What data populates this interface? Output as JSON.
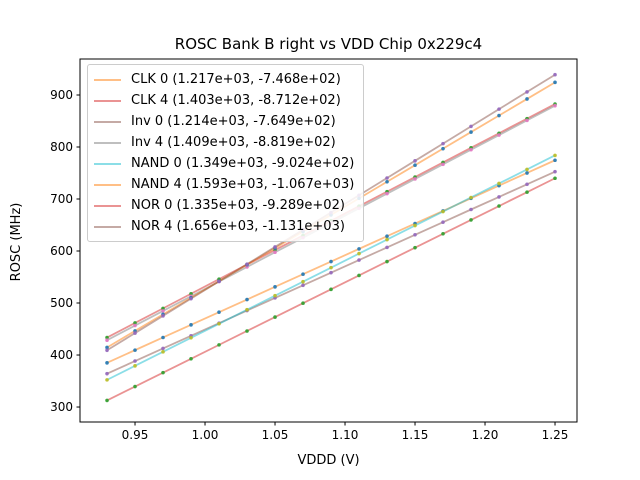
{
  "figure": {
    "background": "#ffffff",
    "axis_color": "#000000",
    "legend_border_color": "#cccccc",
    "line_alpha": 0.5,
    "marker_alpha": 0.9
  },
  "chart_data": {
    "type": "scatter",
    "title": "ROSC Bank B right vs VDD Chip 0x229c4",
    "xlabel": "VDDD (V)",
    "ylabel": "ROSC (MHz)",
    "xlim": [
      0.9107,
      1.2657
    ],
    "ylim": [
      271.2,
      969.2
    ],
    "grid": false,
    "legend_position": "upper left",
    "x_ticks": [
      {
        "value": 0.95,
        "label": "0.95"
      },
      {
        "value": 1.0,
        "label": "1.00"
      },
      {
        "value": 1.05,
        "label": "1.05"
      },
      {
        "value": 1.1,
        "label": "1.10"
      },
      {
        "value": 1.15,
        "label": "1.15"
      },
      {
        "value": 1.2,
        "label": "1.20"
      },
      {
        "value": 1.25,
        "label": "1.25"
      }
    ],
    "y_ticks": [
      {
        "value": 300,
        "label": "300"
      },
      {
        "value": 400,
        "label": "400"
      },
      {
        "value": 500,
        "label": "500"
      },
      {
        "value": 600,
        "label": "600"
      },
      {
        "value": 700,
        "label": "700"
      },
      {
        "value": 800,
        "label": "800"
      },
      {
        "value": 900,
        "label": "900"
      }
    ],
    "x": [
      0.93,
      0.95,
      0.97,
      0.99,
      1.01,
      1.03,
      1.05,
      1.07,
      1.09,
      1.11,
      1.13,
      1.15,
      1.17,
      1.19,
      1.21,
      1.23,
      1.25
    ],
    "series": [
      {
        "name": "CLK 0",
        "label": "CLK 0 (1.217e+03, -7.468e+02)",
        "slope": 1217,
        "intercept": -746.8,
        "line_color": "#ff7f0e",
        "marker_color": "#1f77b4",
        "y": [
          385.0,
          409.4,
          433.7,
          458.0,
          482.4,
          506.7,
          531.1,
          555.4,
          579.7,
          604.1,
          628.4,
          652.8,
          677.1,
          701.4,
          725.8,
          750.1,
          774.5
        ]
      },
      {
        "name": "CLK 4",
        "label": "CLK 4 (1.403e+03, -8.712e+02)",
        "slope": 1403,
        "intercept": -871.2,
        "line_color": "#d62728",
        "marker_color": "#2ca02c",
        "y": [
          433.6,
          461.7,
          489.7,
          517.8,
          545.8,
          573.9,
          601.9,
          630.0,
          658.1,
          686.1,
          714.2,
          742.2,
          770.3,
          798.4,
          826.4,
          854.5,
          882.5
        ]
      },
      {
        "name": "Inv 0",
        "label": "Inv 0 (1.214e+03, -7.649e+02)",
        "slope": 1214,
        "intercept": -764.9,
        "line_color": "#8c564b",
        "marker_color": "#9467bd",
        "y": [
          364.1,
          388.4,
          412.7,
          437.0,
          461.2,
          485.5,
          509.8,
          534.1,
          558.4,
          582.6,
          606.9,
          631.2,
          655.5,
          679.8,
          704.0,
          728.3,
          752.6
        ]
      },
      {
        "name": "Inv 4",
        "label": "Inv 4 (1.409e+03, -8.819e+02)",
        "slope": 1409,
        "intercept": -881.9,
        "line_color": "#7f7f7f",
        "marker_color": "#e377c2",
        "y": [
          428.5,
          456.7,
          484.8,
          513.0,
          541.2,
          569.4,
          597.6,
          625.7,
          653.9,
          682.1,
          710.3,
          738.5,
          766.6,
          794.8,
          823.0,
          851.2,
          879.4
        ]
      },
      {
        "name": "NAND 0",
        "label": "NAND 0 (1.349e+03, -9.024e+02)",
        "slope": 1349,
        "intercept": -902.4,
        "line_color": "#17becf",
        "marker_color": "#bcbd22",
        "y": [
          352.2,
          379.2,
          406.1,
          433.1,
          460.1,
          487.1,
          514.1,
          541.0,
          568.0,
          595.0,
          622.0,
          649.0,
          675.9,
          702.9,
          729.9,
          756.9,
          783.9
        ]
      },
      {
        "name": "NAND 4",
        "label": "NAND 4 (1.593e+03, -1.067e+03)",
        "slope": 1593,
        "intercept": -1067,
        "line_color": "#ff7f0e",
        "marker_color": "#1f77b4",
        "y": [
          414.5,
          446.4,
          478.2,
          510.1,
          541.9,
          573.8,
          605.7,
          637.5,
          669.4,
          701.2,
          733.1,
          765.0,
          796.8,
          828.7,
          860.5,
          892.4,
          924.3
        ]
      },
      {
        "name": "NOR 0",
        "label": "NOR 0 (1.335e+03, -9.289e+02)",
        "slope": 1335,
        "intercept": -928.9,
        "line_color": "#d62728",
        "marker_color": "#2ca02c",
        "y": [
          312.7,
          339.4,
          366.1,
          392.8,
          419.5,
          446.2,
          472.9,
          499.6,
          526.3,
          553.0,
          579.7,
          606.4,
          633.1,
          659.8,
          686.5,
          713.2,
          739.9
        ]
      },
      {
        "name": "NOR 4",
        "label": "NOR 4 (1.656e+03, -1.131e+03)",
        "slope": 1656,
        "intercept": -1131,
        "line_color": "#8c564b",
        "marker_color": "#9467bd",
        "y": [
          409.1,
          442.2,
          475.3,
          508.4,
          541.6,
          574.7,
          607.8,
          640.9,
          674.0,
          707.2,
          740.3,
          773.4,
          806.5,
          839.6,
          872.8,
          905.9,
          939.0
        ]
      }
    ]
  }
}
